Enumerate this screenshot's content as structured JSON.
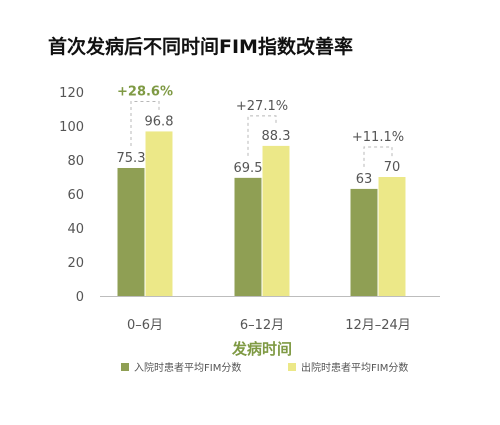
{
  "chart_data": {
    "type": "bar",
    "title": "首次发病后不同时间FIM指数改善率",
    "xlabel": "发病时间",
    "ylabel": "",
    "ylim": [
      0,
      120
    ],
    "yticks": [
      0,
      20,
      40,
      60,
      80,
      100,
      120
    ],
    "grid": false,
    "legend_position": "bottom",
    "categories": [
      "0–6月",
      "6–12月",
      "12月–24月"
    ],
    "series": [
      {
        "name": "入院时患者平均FIM分数",
        "color": "#8f9f54",
        "values": [
          75.3,
          69.5,
          63
        ],
        "labels": [
          "75.3",
          "69.5",
          "63"
        ]
      },
      {
        "name": "出院时患者平均FIM分数",
        "color": "#ece888",
        "values": [
          96.8,
          88.3,
          70
        ],
        "labels": [
          "96.8",
          "88.3",
          "70"
        ]
      }
    ],
    "annotations": [
      {
        "text": "+28.6%",
        "color": "#7f9a44",
        "bold": true
      },
      {
        "text": "+27.1%",
        "color": "#555555",
        "bold": false
      },
      {
        "text": "+11.1%",
        "color": "#555555",
        "bold": false
      }
    ]
  },
  "colors": {
    "title": "#111111",
    "axis_text": "#555555",
    "axis_line": "#bdbdbd",
    "bracket": "#b8b8b8",
    "xlabel": "#7f9a44",
    "value_label": "#555555",
    "legend_text": "#555555"
  }
}
